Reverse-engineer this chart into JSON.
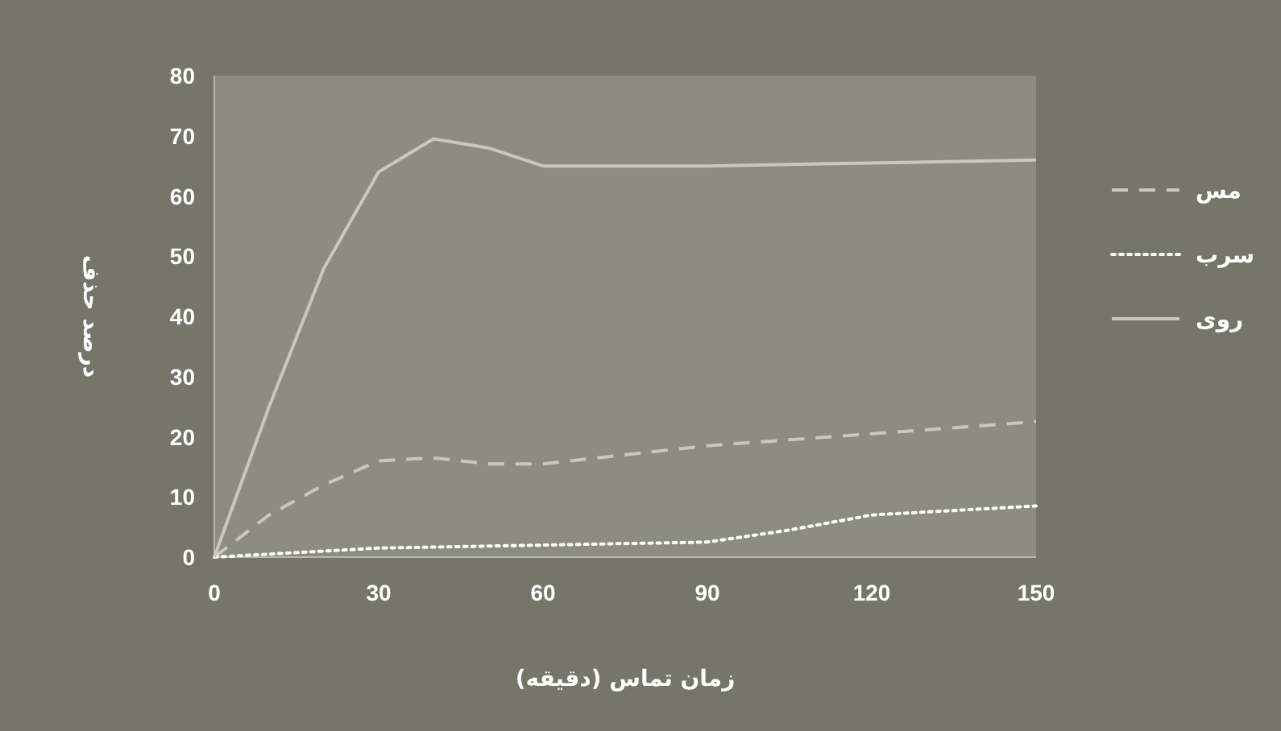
{
  "chart_data": {
    "type": "line",
    "xlabel": "زمان تماس (دقیقه)",
    "ylabel": "درصد حذف",
    "xlim": [
      0,
      150
    ],
    "ylim": [
      0,
      80
    ],
    "xticks": [
      0,
      30,
      60,
      90,
      120,
      150
    ],
    "yticks": [
      0,
      10,
      20,
      30,
      40,
      50,
      60,
      70,
      80
    ],
    "legend": "right",
    "series": [
      {
        "name": "مس",
        "color": "#c9c8c0",
        "line_style": "dashed",
        "x": [
          0,
          10,
          20,
          30,
          40,
          50,
          60,
          90,
          120,
          150
        ],
        "values": [
          0,
          7,
          12,
          16,
          16.5,
          15.5,
          15.5,
          18.5,
          20.5,
          22.5
        ]
      },
      {
        "name": "سرب",
        "color": "#ffffff",
        "line_style": "dotted",
        "x": [
          0,
          30,
          60,
          90,
          105,
          120,
          150
        ],
        "values": [
          0,
          1.5,
          2,
          2.5,
          4.5,
          7,
          8.5
        ]
      },
      {
        "name": "روی",
        "color": "#c9c8c0",
        "line_style": "solid",
        "x": [
          0,
          10,
          20,
          30,
          40,
          50,
          60,
          90,
          120,
          150
        ],
        "values": [
          0,
          25,
          48,
          64,
          69.5,
          68,
          65,
          65,
          65.5,
          66
        ]
      }
    ]
  }
}
